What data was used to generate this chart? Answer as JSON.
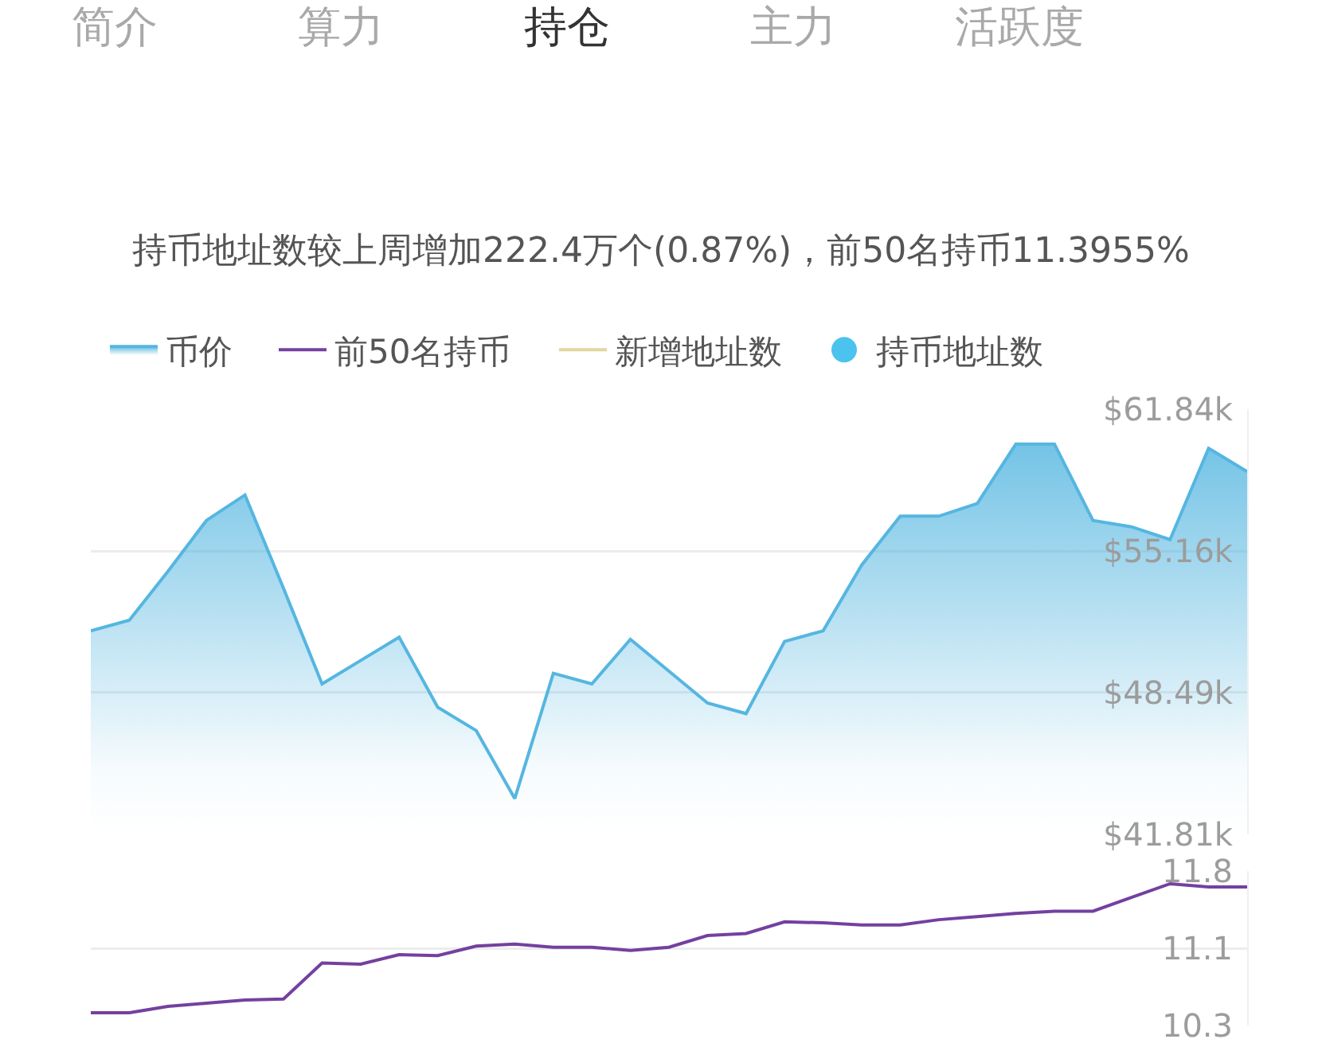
{
  "chart_data": [
    {
      "type": "area",
      "title": "持币地址数较上周增加222.4万个(0.87%)，前50名持币11.3955%",
      "annotations": [
        "简介",
        "算力",
        "持仓",
        "主力",
        "活跃度"
      ],
      "categories": [
        null,
        null,
        null,
        null,
        null,
        null,
        null,
        null,
        null,
        null,
        null,
        null,
        null,
        null,
        null,
        null,
        null,
        null,
        null,
        null,
        null,
        null,
        null,
        null,
        null,
        null,
        null,
        null,
        null,
        null,
        null
      ],
      "series": [
        {
          "name": "币价",
          "color": "#55b6e0",
          "values": [
            51.4,
            51.9,
            54.2,
            56.6,
            57.8,
            53.4,
            48.9,
            50.0,
            51.1,
            47.8,
            46.7,
            43.5,
            49.4,
            48.9,
            51.0,
            49.5,
            48.0,
            47.5,
            50.9,
            51.4,
            54.5,
            56.8,
            56.8,
            57.4,
            60.2,
            60.2,
            56.6,
            56.3,
            55.7,
            60.0,
            58.9
          ]
        },
        {
          "name": "新增地址数",
          "type": "line",
          "color": "#e3d6a0",
          "values": [
            null,
            null,
            null,
            null,
            null,
            null,
            null,
            null,
            null,
            null,
            null,
            null,
            null,
            null,
            null,
            null,
            null,
            null,
            null,
            null,
            null,
            null,
            null,
            null,
            null,
            null,
            null,
            null,
            null,
            null,
            null
          ]
        },
        {
          "name": "持币地址数",
          "type": "scatter",
          "color": "#4cc3ef",
          "values": [
            null,
            null,
            null,
            null,
            null,
            null,
            null,
            null,
            null,
            null,
            null,
            null,
            null,
            null,
            null,
            null,
            null,
            null,
            null,
            null,
            null,
            null,
            null,
            null,
            null,
            null,
            null,
            null,
            null,
            null,
            null
          ]
        }
      ],
      "ylim": [
        41.81,
        61.84
      ],
      "yticks": [
        {
          "value": 41.81,
          "label": "$41.81k"
        },
        {
          "value": 48.49,
          "label": "$48.49k"
        },
        {
          "value": 55.16,
          "label": "$55.16k"
        },
        {
          "value": 61.84,
          "label": "$61.84k"
        }
      ],
      "grid": "y",
      "legend": "top left",
      "tick_labels": "y"
    },
    {
      "type": "line",
      "categories": [
        null,
        null,
        null,
        null,
        null,
        null,
        null,
        null,
        null,
        null,
        null,
        null,
        null,
        null,
        null,
        null,
        null,
        null,
        null,
        null,
        null,
        null,
        null,
        null,
        null,
        null,
        null,
        null,
        null,
        null,
        null
      ],
      "series": [
        {
          "name": "前50名持币",
          "color": "#7440a0",
          "values": [
            10.46,
            10.46,
            10.52,
            10.55,
            10.58,
            10.59,
            10.93,
            10.92,
            11.01,
            11.0,
            11.09,
            11.11,
            11.08,
            11.08,
            11.05,
            11.08,
            11.19,
            11.21,
            11.32,
            11.31,
            11.29,
            11.29,
            11.34,
            11.37,
            11.4,
            11.42,
            11.42,
            11.55,
            11.68,
            11.65,
            11.65
          ]
        }
      ],
      "ylim": [
        10.34,
        11.8
      ],
      "yticks": [
        {
          "value": 10.34,
          "label": "10.3"
        },
        {
          "value": 11.07,
          "label": "11.1"
        },
        11.8
      ],
      "grid": "y",
      "legend": "top left",
      "tick_labels": "y"
    }
  ]
}
